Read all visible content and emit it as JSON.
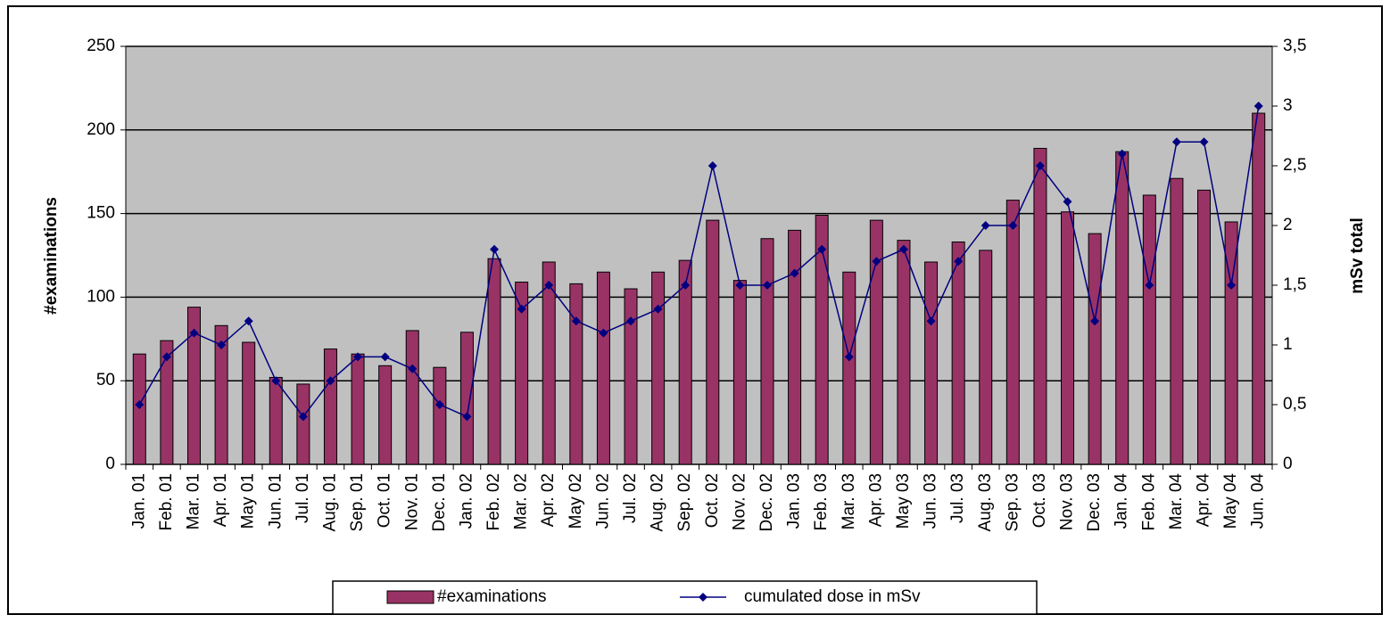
{
  "chart_data": {
    "type": "bar-line",
    "y_label": "#examinations",
    "y2_label": "mSv total",
    "categories": [
      "Jan. 01",
      "Feb. 01",
      "Mar. 01",
      "Apr. 01",
      "May 01",
      "Jun. 01",
      "Jul. 01",
      "Aug. 01",
      "Sep. 01",
      "Oct. 01",
      "Nov. 01",
      "Dec. 01",
      "Jan. 02",
      "Feb. 02",
      "Mar. 02",
      "Apr. 02",
      "May 02",
      "Jun. 02",
      "Jul. 02",
      "Aug. 02",
      "Sep. 02",
      "Oct. 02",
      "Nov. 02",
      "Dec. 02",
      "Jan. 03",
      "Feb. 03",
      "Mar. 03",
      "Apr. 03",
      "May 03",
      "Jun. 03",
      "Jul. 03",
      "Aug. 03",
      "Sep. 03",
      "Oct. 03",
      "Nov. 03",
      "Dec. 03",
      "Jan. 04",
      "Feb. 04",
      "Mar. 04",
      "Apr. 04",
      "May 04",
      "Jun. 04"
    ],
    "series": [
      {
        "name": "#examinations",
        "type": "bar",
        "color": "#993366",
        "values": [
          66,
          74,
          94,
          83,
          73,
          52,
          48,
          69,
          66,
          59,
          80,
          58,
          79,
          123,
          109,
          121,
          108,
          115,
          105,
          115,
          122,
          146,
          110,
          135,
          140,
          149,
          115,
          146,
          134,
          121,
          133,
          128,
          158,
          189,
          151,
          138,
          187,
          161,
          171,
          164,
          145,
          210
        ]
      },
      {
        "name": "cumulated dose in mSv",
        "type": "line",
        "axis": "y2",
        "color": "#000080",
        "values": [
          0.5,
          0.9,
          1.1,
          1.0,
          1.2,
          0.7,
          0.4,
          0.7,
          0.9,
          0.9,
          0.8,
          0.5,
          0.4,
          1.8,
          1.3,
          1.5,
          1.2,
          1.1,
          1.2,
          1.3,
          1.5,
          2.5,
          1.5,
          1.5,
          1.6,
          1.8,
          0.9,
          1.7,
          1.8,
          1.2,
          1.7,
          2.0,
          2.0,
          2.5,
          2.2,
          1.2,
          2.6,
          1.5,
          2.7,
          2.7,
          1.5,
          3.0
        ]
      }
    ],
    "ylim": [
      0,
      250
    ],
    "yticks": [
      0,
      50,
      100,
      150,
      200,
      250
    ],
    "y2lim": [
      0,
      3.5
    ],
    "y2ticks": [
      0,
      {
        "value": 0.5,
        "label": "0,5"
      },
      1,
      {
        "value": 1.5,
        "label": "1,5"
      },
      2,
      {
        "value": 2.5,
        "label": "2,5"
      },
      3,
      {
        "value": 3.5,
        "label": "3,5"
      }
    ],
    "grid": true,
    "background": "#c0c0c0"
  }
}
